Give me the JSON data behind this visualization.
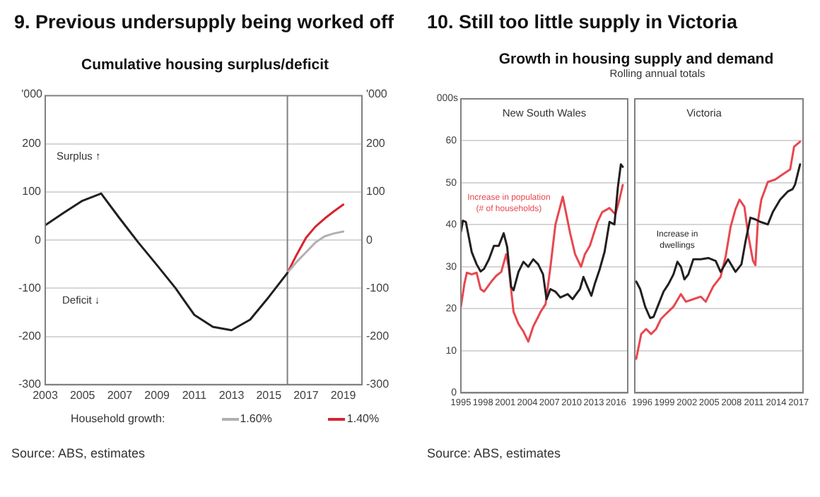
{
  "chart_data": [
    {
      "type": "line",
      "title": "9. Previous undersupply being worked off",
      "subtitle": "Cumulative housing surplus/deficit",
      "legend": "bottom",
      "legend_title": "Household growth:",
      "marker": "none",
      "grid": "y",
      "annotations": [
        "Surplus ↑",
        "Deficit ↓",
        "Source:  ABS, estimates"
      ],
      "xlim": [
        2003,
        2020
      ],
      "xticks": [
        2003,
        2005,
        2007,
        2009,
        2011,
        2013,
        2015,
        2017,
        2019
      ],
      "ylabel": "'000",
      "y2label": "'000",
      "ylim": [
        -300,
        300
      ],
      "yticks": [
        -300,
        -200,
        -100,
        0,
        100,
        200
      ],
      "y2lim": [
        -300,
        300
      ],
      "y2ticks": [
        -300,
        -200,
        -100,
        0,
        100,
        200
      ],
      "ref_lines": [
        {
          "axis": "x",
          "value": 2016,
          "color": "#808080"
        }
      ],
      "series": [
        {
          "color": "#231f20",
          "x": [
            2003,
            2004,
            2005,
            2006,
            2007,
            2008,
            2009,
            2010,
            2011,
            2012,
            2013,
            2014,
            2015,
            2016
          ],
          "values": [
            31,
            57,
            82,
            97,
            45,
            -5,
            -52,
            -100,
            -155,
            -180,
            -187,
            -165,
            -118,
            -68
          ]
        },
        {
          "name": "1.60%",
          "color": "#b0b0b0",
          "x": [
            2016,
            2016.5,
            2017,
            2017.5,
            2018,
            2018.5,
            2019
          ],
          "values": [
            -68,
            -45,
            -25,
            -5,
            8,
            14,
            18
          ]
        },
        {
          "name": "1.40%",
          "color": "#d9232e",
          "x": [
            2016,
            2016.5,
            2017,
            2017.5,
            2018,
            2018.5,
            2019
          ],
          "values": [
            -68,
            -30,
            5,
            28,
            45,
            60,
            74
          ]
        }
      ]
    },
    {
      "type": "line",
      "title": "10. Still too little supply in Victoria",
      "subtitle": "Growth in housing supply and demand",
      "marker": "none",
      "grid": "y",
      "annotations": [
        "Rolling annual totals",
        "New South Wales",
        "Source: ABS, estimates"
      ],
      "xlim": [
        1995,
        2017.6
      ],
      "xticks": [
        1995,
        1998,
        2001,
        2004,
        2007,
        2010,
        2013,
        2016
      ],
      "ylabel": "000s",
      "ylim": [
        0,
        70
      ],
      "yticks": [
        0,
        10,
        20,
        30,
        40,
        50,
        60
      ],
      "series": [
        {
          "color": "#231f20",
          "x": [
            1995,
            1995.27,
            1995.67,
            1996.47,
            1997.13,
            1997.67,
            1998.13,
            1998.8,
            1999.47,
            2000.13,
            2000.8,
            2001.27,
            2001.8,
            2002.13,
            2002.8,
            2003.47,
            2004.13,
            2004.8,
            2005.47,
            2006.13,
            2006.6,
            2007.13,
            2007.8,
            2008.47,
            2009.47,
            2010.13,
            2011.13,
            2011.6,
            2012.13,
            2012.67,
            2013.13,
            2013.8,
            2014.47,
            2015.13,
            2015.8,
            2016.27,
            2016.67,
            2016.93
          ],
          "values": [
            38.3,
            41,
            40.7,
            33.5,
            30.6,
            28.9,
            29.5,
            31.8,
            35,
            35,
            38,
            34.7,
            25.3,
            24.4,
            28.8,
            31.2,
            30,
            31.8,
            30.6,
            28.2,
            22.3,
            24.7,
            24.1,
            22.7,
            23.5,
            22.3,
            24.7,
            27.6,
            25.3,
            23.1,
            25.9,
            29.4,
            33.6,
            40.7,
            40.1,
            49,
            54.4,
            53.8
          ]
        },
        {
          "name": "Increase in population (# of households)",
          "color": "#e8474f",
          "x": [
            1995,
            1995.47,
            1995.8,
            1996.47,
            1997.13,
            1997.67,
            1998.13,
            1999.13,
            1999.8,
            2000.47,
            2001.13,
            2001.47,
            2002.13,
            2002.8,
            2003.47,
            2004.13,
            2004.8,
            2005.47,
            2005.8,
            2006.47,
            2007.13,
            2007.8,
            2008.8,
            2009.8,
            2010.47,
            2011.27,
            2011.8,
            2012.47,
            2013.47,
            2014.13,
            2015.13,
            2015.93,
            2016.47,
            2016.93
          ],
          "values": [
            20.5,
            25.9,
            28.6,
            28.2,
            28.6,
            24.7,
            24.1,
            26.5,
            27.9,
            28.8,
            33,
            30,
            19.3,
            16.4,
            14.6,
            12.2,
            15.8,
            18.1,
            19.3,
            21.1,
            30,
            40,
            46.7,
            38,
            33,
            30,
            33,
            35,
            40.5,
            43,
            44,
            42.5,
            46,
            49.5
          ]
        }
      ]
    },
    {
      "type": "line",
      "marker": "none",
      "grid": "y",
      "tick_labels": "x",
      "annotations": [
        "Victoria"
      ],
      "xlim": [
        1995,
        2017.6
      ],
      "xticks": [
        1996,
        1999,
        2002,
        2005,
        2008,
        2011,
        2014,
        2017
      ],
      "ylim": [
        0,
        70
      ],
      "yticks": [
        0,
        10,
        20,
        30,
        40,
        50,
        60,
        70
      ],
      "series": [
        {
          "name": "Increase in dwellings",
          "color": "#231f20",
          "x": [
            1995.2,
            1995.73,
            1996.4,
            1997.07,
            1997.53,
            1998.2,
            1998.87,
            1999.53,
            2000.2,
            2000.73,
            2001.2,
            2001.67,
            2002.2,
            2002.87,
            2003.87,
            2004.87,
            2005.87,
            2006.53,
            2007.53,
            2008.53,
            2009.33,
            2009.87,
            2010.53,
            2011.2,
            2011.87,
            2012.87,
            2013.53,
            2014.53,
            2015.53,
            2016.2,
            2016.53,
            2017.2
          ],
          "values": [
            26.5,
            24.7,
            20.5,
            17.8,
            18.1,
            21.1,
            24.1,
            25.9,
            28.2,
            31.2,
            30,
            27,
            28.2,
            31.8,
            31.8,
            32.1,
            31.4,
            28.8,
            31.8,
            28.8,
            30.6,
            36,
            41.7,
            41.3,
            40.7,
            40.1,
            43,
            46,
            47.9,
            48.5,
            49.6,
            54.4
          ]
        },
        {
          "color": "#e8474f",
          "x": [
            1995.2,
            1995.87,
            1996.53,
            1997.2,
            1997.87,
            1998.53,
            1999.2,
            2000.2,
            2001.2,
            2001.87,
            2002.87,
            2003.87,
            2004.53,
            2005.53,
            2006.53,
            2007.2,
            2007.87,
            2008.53,
            2009.07,
            2009.73,
            2010.2,
            2010.87,
            2011.2,
            2011.53,
            2012,
            2012.87,
            2013.87,
            2014.87,
            2015.87,
            2016.4,
            2017.2
          ],
          "values": [
            8.1,
            14,
            15.2,
            14,
            15.2,
            17.6,
            18.8,
            20.5,
            23.5,
            21.7,
            22.3,
            22.9,
            21.7,
            25.3,
            27.6,
            32.4,
            39.5,
            43.7,
            46,
            44.3,
            38,
            31.5,
            30.4,
            40.7,
            46,
            50.2,
            50.8,
            52,
            53.2,
            58.6,
            59.8
          ]
        }
      ]
    }
  ]
}
